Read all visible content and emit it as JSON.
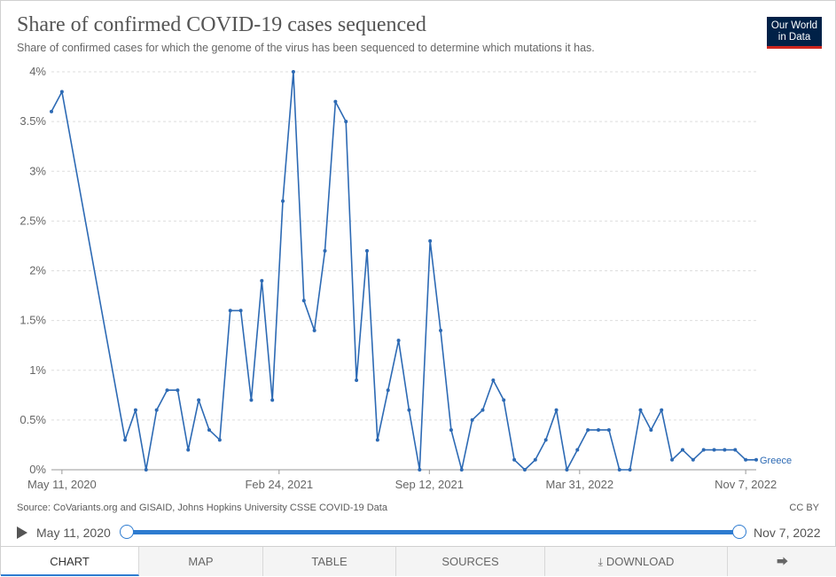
{
  "header": {
    "title": "Share of confirmed COVID-19 cases sequenced",
    "subtitle": "Share of confirmed cases for which the genome of the virus has been sequenced to determine which mutations it has.",
    "logo_line1": "Our World",
    "logo_line2": "in Data"
  },
  "footer": {
    "source": "Source: CoVariants.org and GISAID, Johns Hopkins University CSSE COVID-19 Data",
    "license": "CC BY"
  },
  "timeline": {
    "start_label": "May 11, 2020",
    "end_label": "Nov 7, 2022",
    "play_icon": "play-icon"
  },
  "tabs": [
    {
      "label": "CHART",
      "active": true
    },
    {
      "label": "MAP"
    },
    {
      "label": "TABLE"
    },
    {
      "label": "SOURCES"
    },
    {
      "label": "DOWNLOAD",
      "icon": "download-icon"
    },
    {
      "label": "",
      "icon": "share-icon"
    }
  ],
  "colors": {
    "line": "#2d6ab4",
    "accent": "#2d7bd0",
    "logo_bg": "#002147",
    "logo_underline": "#ce261e"
  },
  "chart_data": {
    "type": "line",
    "title": "Share of confirmed COVID-19 cases sequenced",
    "ylim": [
      0,
      4
    ],
    "y_ticks": [
      0,
      0.5,
      1,
      1.5,
      2,
      2.5,
      3,
      3.5,
      4
    ],
    "y_tick_labels": [
      "0%",
      "0.5%",
      "1%",
      "1.5%",
      "2%",
      "2.5%",
      "3%",
      "3.5%",
      "4%"
    ],
    "x_range": [
      "2020-04-27",
      "2022-11-21"
    ],
    "x_ticks": [
      "2020-05-11",
      "2021-02-24",
      "2021-09-12",
      "2022-03-31",
      "2022-11-07"
    ],
    "x_tick_labels": [
      "May 11, 2020",
      "Feb 24, 2021",
      "Sep 12, 2021",
      "Mar 31, 2022",
      "Nov 7, 2022"
    ],
    "grid": true,
    "series": [
      {
        "name": "Greece",
        "x": [
          "2020-04-27",
          "2020-05-11",
          "2020-08-03",
          "2020-08-17",
          "2020-08-31",
          "2020-09-14",
          "2020-09-28",
          "2020-10-12",
          "2020-10-26",
          "2020-11-09",
          "2020-11-23",
          "2020-12-07",
          "2020-12-21",
          "2021-01-04",
          "2021-01-18",
          "2021-02-01",
          "2021-02-15",
          "2021-03-01",
          "2021-03-15",
          "2021-03-29",
          "2021-04-12",
          "2021-04-26",
          "2021-05-10",
          "2021-05-24",
          "2021-06-07",
          "2021-06-21",
          "2021-07-05",
          "2021-07-19",
          "2021-08-02",
          "2021-08-16",
          "2021-08-30",
          "2021-09-13",
          "2021-09-27",
          "2021-10-11",
          "2021-10-25",
          "2021-11-08",
          "2021-11-22",
          "2021-12-06",
          "2021-12-20",
          "2022-01-03",
          "2022-01-17",
          "2022-01-31",
          "2022-02-14",
          "2022-02-28",
          "2022-03-14",
          "2022-03-28",
          "2022-04-11",
          "2022-04-25",
          "2022-05-09",
          "2022-05-23",
          "2022-06-06",
          "2022-06-20",
          "2022-07-04",
          "2022-07-18",
          "2022-08-01",
          "2022-08-15",
          "2022-08-29",
          "2022-09-12",
          "2022-09-26",
          "2022-10-10",
          "2022-10-24",
          "2022-11-07",
          "2022-11-21"
        ],
        "y": [
          3.6,
          3.8,
          0.3,
          0.6,
          0.0,
          0.6,
          0.8,
          0.8,
          0.2,
          0.7,
          0.4,
          0.3,
          1.6,
          1.6,
          0.7,
          1.9,
          0.7,
          2.7,
          4.0,
          1.7,
          1.4,
          2.2,
          3.7,
          3.5,
          0.9,
          2.2,
          0.3,
          0.8,
          1.3,
          0.6,
          0.0,
          2.3,
          1.4,
          0.4,
          0.0,
          0.5,
          0.6,
          0.9,
          0.7,
          0.1,
          0.0,
          0.1,
          0.3,
          0.6,
          0.0,
          0.2,
          0.4,
          0.4,
          0.4,
          0.0,
          0.0,
          0.6,
          0.4,
          0.6,
          0.1,
          0.2,
          0.1,
          0.2,
          0.2,
          0.2,
          0.2,
          0.1,
          0.1
        ]
      }
    ]
  }
}
